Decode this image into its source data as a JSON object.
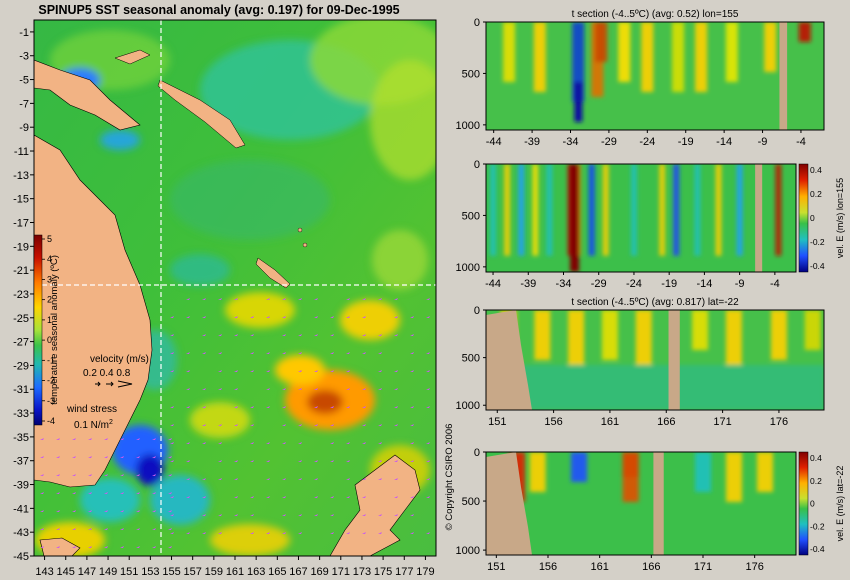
{
  "map": {
    "title": "SPINUP5 SST seasonal anomaly (avg: 0.197) for 09-Dec-1995",
    "lat_labels": [
      "-1",
      "-3",
      "-5",
      "-7",
      "-9",
      "-11",
      "-13",
      "-15",
      "-17",
      "-19",
      "-21",
      "-23",
      "-25",
      "-27",
      "-29",
      "-31",
      "-33",
      "-35",
      "-37",
      "-39",
      "-41",
      "-43",
      "-45"
    ],
    "lon_labels": [
      "143",
      "145",
      "147",
      "149",
      "151",
      "153",
      "155",
      "157",
      "159",
      "161",
      "163",
      "165",
      "167",
      "169",
      "171",
      "173",
      "175",
      "177",
      "179"
    ],
    "colorbar_ticks": [
      "5",
      "4",
      "3",
      "2",
      "1",
      "0",
      "-1",
      "-2",
      "-3",
      "-4"
    ],
    "colorbar_label": "temperature seasonal anomaly (ºC)",
    "velocity_label": "velocity (m/s)",
    "velocity_scale": "0.2 0.4 0.8",
    "wind_label": "wind stress",
    "wind_scale": "0.1 N/m",
    "wind_unit_sup": "2",
    "section_lon_mark": 155,
    "section_lat_mark": -22
  },
  "panels": [
    {
      "title": "t section (-4..5ºC) (avg: 0.52) lon=155",
      "x_labels": [
        "-44",
        "-39",
        "-34",
        "-29",
        "-24",
        "-19",
        "-14",
        "-9",
        "-4"
      ],
      "y_labels": [
        "0",
        "500",
        "1000"
      ],
      "side_label": "",
      "cb_ticks": []
    },
    {
      "title": "",
      "x_labels": [
        "-44",
        "-39",
        "-34",
        "-29",
        "-24",
        "-19",
        "-14",
        "-9",
        "-4"
      ],
      "y_labels": [
        "0",
        "500",
        "1000"
      ],
      "side_label": "vel. E (m/s) lon=155",
      "cb_ticks": [
        "0.4",
        "0.2",
        "0",
        "-0.2",
        "-0.4"
      ]
    },
    {
      "title": "t section (-4..5ºC) (avg: 0.817) lat=-22",
      "x_labels": [
        "151",
        "156",
        "161",
        "166",
        "171",
        "176"
      ],
      "y_labels": [
        "0",
        "500",
        "1000"
      ],
      "side_label": "",
      "cb_ticks": []
    },
    {
      "title": "",
      "x_labels": [
        "151",
        "156",
        "161",
        "166",
        "171",
        "176"
      ],
      "y_labels": [
        "0",
        "500",
        "1000"
      ],
      "side_label": "vel. E (m/s) lat=-22",
      "cb_ticks": [
        "0.4",
        "0.2",
        "0",
        "-0.2",
        "-0.4"
      ]
    }
  ],
  "copyright": "© Copyright CSIRO 2006",
  "chart_data": [
    {
      "type": "heatmap",
      "title": "SPINUP5 SST seasonal anomaly (avg: 0.197) for 09-Dec-1995",
      "xlabel": "",
      "ylabel": "",
      "x_ticks": [
        143,
        145,
        147,
        149,
        151,
        153,
        155,
        157,
        159,
        161,
        163,
        165,
        167,
        169,
        171,
        173,
        175,
        177,
        179
      ],
      "y_ticks": [
        -1,
        -3,
        -5,
        -7,
        -9,
        -11,
        -13,
        -15,
        -17,
        -19,
        -21,
        -23,
        -25,
        -27,
        -29,
        -31,
        -33,
        -35,
        -37,
        -39,
        -41,
        -43,
        -45
      ],
      "xlim": [
        142,
        180
      ],
      "ylim": [
        -45,
        0
      ],
      "colorbar": {
        "label": "temperature seasonal anomaly (ºC)",
        "range": [
          -4,
          5
        ]
      }
    },
    {
      "type": "heatmap",
      "title": "t section (-4..5ºC) (avg: 0.52) lon=155",
      "x_ticks": [
        -44,
        -39,
        -34,
        -29,
        -24,
        -19,
        -14,
        -9,
        -4
      ],
      "y_ticks": [
        0,
        500,
        1000
      ],
      "xlim": [
        -45,
        -1
      ],
      "ylim": [
        1050,
        0
      ]
    },
    {
      "type": "heatmap",
      "title": "",
      "x_ticks": [
        -44,
        -39,
        -34,
        -29,
        -24,
        -19,
        -14,
        -9,
        -4
      ],
      "y_ticks": [
        0,
        500,
        1000
      ],
      "xlim": [
        -45,
        -1
      ],
      "ylim": [
        1050,
        0
      ],
      "colorbar": {
        "label": "vel. E (m/s) lon=155",
        "range": [
          -0.4,
          0.4
        ]
      }
    },
    {
      "type": "heatmap",
      "title": "t section (-4..5ºC) (avg: 0.817) lat=-22",
      "x_ticks": [
        151,
        156,
        161,
        166,
        171,
        176
      ],
      "y_ticks": [
        0,
        500,
        1000
      ],
      "xlim": [
        150,
        180
      ],
      "ylim": [
        1050,
        0
      ]
    },
    {
      "type": "heatmap",
      "title": "",
      "x_ticks": [
        151,
        156,
        161,
        166,
        171,
        176
      ],
      "y_ticks": [
        0,
        500,
        1000
      ],
      "xlim": [
        150,
        180
      ],
      "ylim": [
        1050,
        0
      ],
      "colorbar": {
        "label": "vel. E (m/s) lat=-22",
        "range": [
          -0.4,
          0.4
        ]
      }
    }
  ]
}
